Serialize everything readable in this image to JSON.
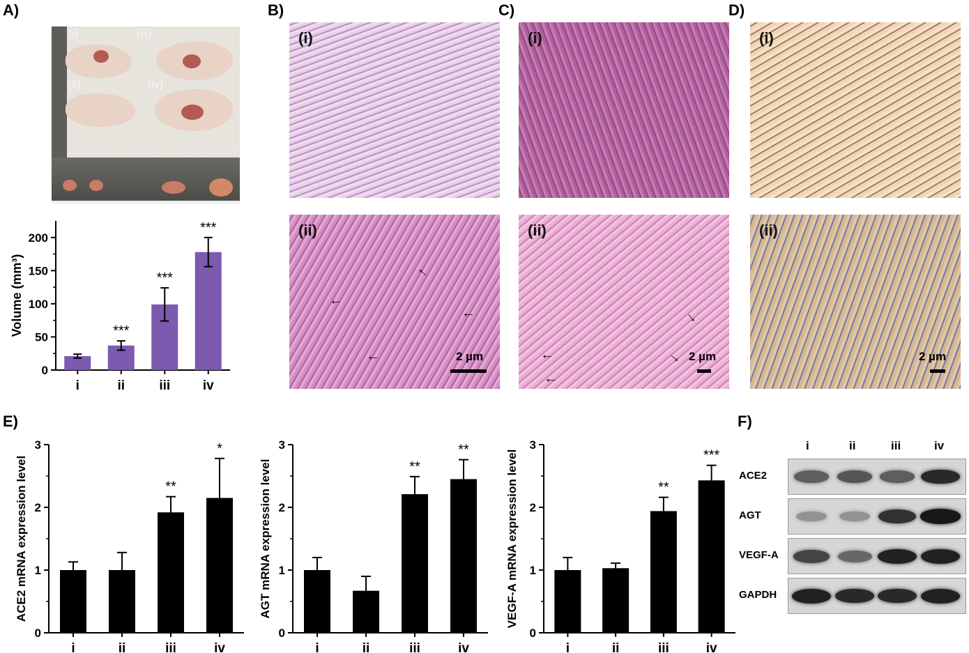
{
  "panels": {
    "a": "A)",
    "b": "B)",
    "c": "C)",
    "d": "D)",
    "e": "E)",
    "f": "F)"
  },
  "photo_labels": [
    "(i)",
    "(iii)",
    "(ii)",
    "(iv)"
  ],
  "ruler_numbers": [
    "1",
    "2",
    "3",
    "4",
    "5",
    "6",
    "7"
  ],
  "micro_labels": {
    "top": "(i)",
    "bottom": "(ii)"
  },
  "scale_text": "2 µm",
  "colors": {
    "volume_bar": "#7b5ab0",
    "mrna_bar": "#000000",
    "he_stain": "#c88cc3",
    "ihc_stain": "#e6cfb2"
  },
  "chart_data": [
    {
      "type": "bar",
      "id": "volume",
      "categories": [
        "i",
        "ii",
        "iii",
        "iv"
      ],
      "values": [
        21,
        37,
        99,
        178
      ],
      "errors": [
        3,
        7,
        25,
        22
      ],
      "significance": [
        "",
        "***",
        "***",
        "***"
      ],
      "ylabel": "Volume (mm³)",
      "ylim": [
        0,
        225
      ],
      "yticks": [
        0,
        50,
        100,
        150,
        200
      ]
    },
    {
      "type": "bar",
      "id": "ace2",
      "categories": [
        "i",
        "ii",
        "iii",
        "iv"
      ],
      "values": [
        1.0,
        1.0,
        1.92,
        2.15
      ],
      "errors": [
        0.13,
        0.28,
        0.25,
        0.63
      ],
      "significance": [
        "",
        "",
        "**",
        "*"
      ],
      "ylabel": "ACE2 mRNA expression level",
      "ylim": [
        0,
        3
      ],
      "yticks": [
        0,
        1,
        2,
        3
      ]
    },
    {
      "type": "bar",
      "id": "agt",
      "categories": [
        "i",
        "ii",
        "iii",
        "iv"
      ],
      "values": [
        1.0,
        0.67,
        2.21,
        2.45
      ],
      "errors": [
        0.2,
        0.23,
        0.28,
        0.31
      ],
      "significance": [
        "",
        "",
        "**",
        "**"
      ],
      "ylabel": "AGT mRNA expression level",
      "ylim": [
        0,
        3
      ],
      "yticks": [
        0,
        1,
        2,
        3
      ]
    },
    {
      "type": "bar",
      "id": "vegfa",
      "categories": [
        "i",
        "ii",
        "iii",
        "iv"
      ],
      "values": [
        1.0,
        1.03,
        1.94,
        2.43
      ],
      "errors": [
        0.2,
        0.08,
        0.22,
        0.24
      ],
      "significance": [
        "",
        "",
        "**",
        "***"
      ],
      "ylabel": "VEGF-A mRNA expression level",
      "ylim": [
        0,
        3
      ],
      "yticks": [
        0,
        1,
        2,
        3
      ]
    }
  ],
  "western_blot": {
    "lanes": [
      "i",
      "ii",
      "iii",
      "iv"
    ],
    "rows": [
      {
        "label": "ACE2",
        "intensity": [
          0.55,
          0.6,
          0.55,
          0.85
        ]
      },
      {
        "label": "AGT",
        "intensity": [
          0.25,
          0.25,
          0.8,
          0.95
        ]
      },
      {
        "label": "VEGF-A",
        "intensity": [
          0.7,
          0.5,
          0.9,
          0.9
        ]
      },
      {
        "label": "GAPDH",
        "intensity": [
          0.9,
          0.85,
          0.85,
          0.9
        ]
      }
    ]
  }
}
